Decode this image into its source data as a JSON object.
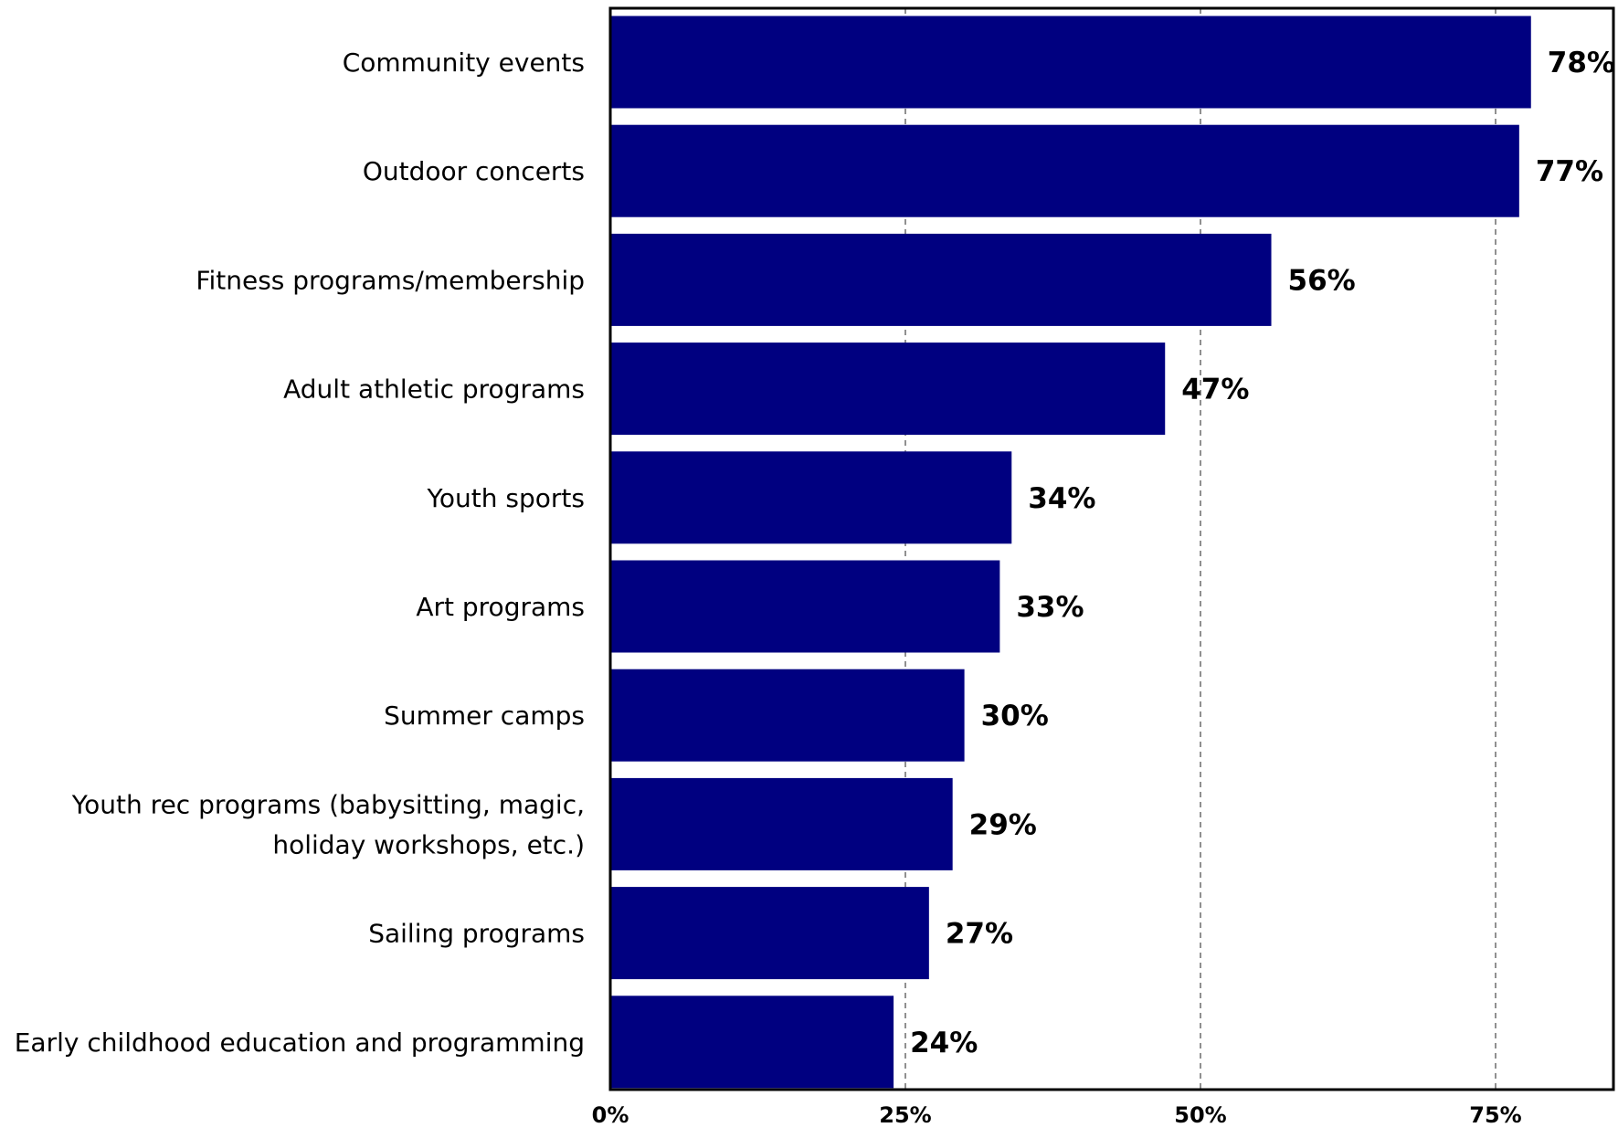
{
  "chart_data": {
    "type": "bar",
    "orientation": "horizontal",
    "title": "",
    "xlabel": "",
    "ylabel": "",
    "categories": [
      "Community events",
      "Outdoor concerts",
      "Fitness programs/membership",
      "Adult athletic programs",
      "Youth sports",
      "Art programs",
      "Summer camps",
      "Youth rec programs (babysitting, magic, holiday workshops, etc.)",
      "Sailing programs",
      "Early childhood education and programming"
    ],
    "category_lines": [
      [
        "Community events"
      ],
      [
        "Outdoor concerts"
      ],
      [
        "Fitness programs/membership"
      ],
      [
        "Adult athletic programs"
      ],
      [
        "Youth sports"
      ],
      [
        "Art programs"
      ],
      [
        "Summer camps"
      ],
      [
        "Youth rec programs (babysitting, magic,",
        "holiday workshops, etc.)"
      ],
      [
        "Sailing programs"
      ],
      [
        "Early childhood education and programming"
      ]
    ],
    "values": [
      78,
      77,
      56,
      47,
      34,
      33,
      30,
      29,
      27,
      24
    ],
    "value_labels": [
      "78%",
      "77%",
      "56%",
      "47%",
      "34%",
      "33%",
      "30%",
      "29%",
      "27%",
      "24%"
    ],
    "xlim": [
      0,
      85
    ],
    "xticks": [
      0,
      25,
      50,
      75
    ],
    "xtick_labels": [
      "0%",
      "25%",
      "50%",
      "75%"
    ],
    "grid": "vertical dashed",
    "legend": "none",
    "bar_color": "#000080"
  }
}
